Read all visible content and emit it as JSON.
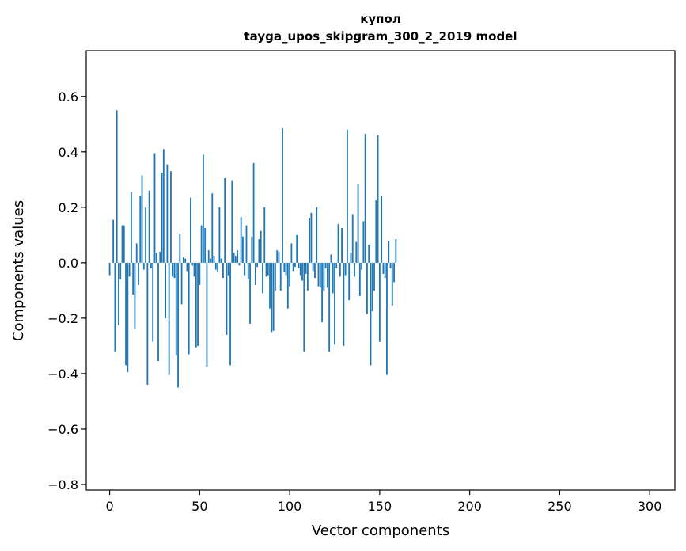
{
  "chart_data": {
    "type": "bar",
    "title_line1": "купол",
    "title_line2": "tayga_upos_skipgram_300_2_2019 model",
    "xlabel": "Vector components",
    "ylabel": "Components values",
    "xlim": [
      -13,
      314
    ],
    "ylim": [
      -0.82,
      0.765
    ],
    "xticks": [
      0,
      50,
      100,
      150,
      200,
      250,
      300
    ],
    "xtick_labels": [
      "0",
      "50",
      "100",
      "150",
      "200",
      "250",
      "300"
    ],
    "yticks": [
      -0.8,
      -0.6,
      -0.4,
      -0.2,
      0.0,
      0.2,
      0.4,
      0.6
    ],
    "ytick_labels": [
      "−0.8",
      "−0.6",
      "−0.4",
      "−0.2",
      "0.0",
      "0.2",
      "0.4",
      "0.6"
    ],
    "bar_color": "#1f77b4",
    "values": [
      -0.045,
      0.0,
      0.155,
      -0.32,
      0.55,
      -0.225,
      -0.06,
      0.135,
      0.135,
      -0.37,
      -0.395,
      -0.05,
      0.255,
      -0.115,
      -0.24,
      0.07,
      -0.08,
      0.24,
      0.315,
      -0.025,
      0.2,
      -0.44,
      0.26,
      -0.02,
      -0.285,
      0.395,
      0.035,
      -0.355,
      0.04,
      0.325,
      0.41,
      -0.2,
      0.355,
      -0.405,
      0.33,
      -0.05,
      -0.055,
      -0.335,
      -0.45,
      0.105,
      -0.15,
      0.02,
      0.015,
      -0.03,
      -0.33,
      0.235,
      -0.01,
      -0.05,
      -0.305,
      -0.3,
      -0.08,
      0.135,
      0.39,
      0.125,
      -0.375,
      0.045,
      0.015,
      0.25,
      0.025,
      -0.025,
      -0.035,
      0.2,
      0.015,
      -0.055,
      0.305,
      -0.26,
      -0.045,
      -0.37,
      0.295,
      0.035,
      0.025,
      0.045,
      -0.01,
      0.165,
      0.095,
      -0.045,
      0.135,
      -0.06,
      -0.22,
      0.095,
      0.36,
      -0.08,
      -0.015,
      0.085,
      0.115,
      -0.11,
      0.2,
      -0.05,
      -0.045,
      -0.165,
      -0.25,
      -0.245,
      -0.1,
      0.045,
      0.04,
      -0.1,
      0.485,
      -0.035,
      -0.045,
      -0.165,
      -0.085,
      0.07,
      -0.03,
      -0.015,
      0.1,
      -0.02,
      -0.045,
      -0.065,
      -0.32,
      -0.04,
      -0.1,
      0.16,
      0.18,
      -0.03,
      -0.055,
      0.2,
      -0.085,
      -0.09,
      -0.215,
      -0.1,
      -0.02,
      -0.09,
      -0.32,
      0.03,
      -0.11,
      -0.295,
      -0.02,
      0.14,
      -0.05,
      0.125,
      -0.3,
      -0.045,
      0.48,
      -0.135,
      0.035,
      0.175,
      -0.05,
      0.075,
      0.285,
      -0.12,
      -0.025,
      0.15,
      0.465,
      -0.185,
      0.065,
      -0.37,
      -0.175,
      -0.1,
      0.225,
      0.46,
      -0.285,
      0.24,
      -0.04,
      -0.055,
      -0.405,
      0.08,
      -0.02,
      -0.155,
      -0.07,
      0.085
    ]
  }
}
